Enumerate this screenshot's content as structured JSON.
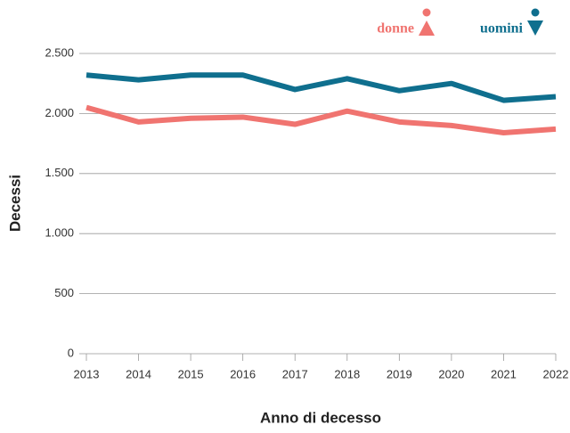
{
  "chart_data": {
    "type": "line",
    "x_label": "Anno di decesso",
    "y_label": "Decessi",
    "categories": [
      "2013",
      "2014",
      "2015",
      "2016",
      "2017",
      "2018",
      "2019",
      "2020",
      "2021",
      "2022"
    ],
    "series": [
      {
        "name": "donne",
        "color": "#f07470",
        "values": [
          2050,
          1930,
          1960,
          1970,
          1910,
          2020,
          1930,
          1900,
          1840,
          1870
        ]
      },
      {
        "name": "uomini",
        "color": "#0f6f8e",
        "values": [
          2320,
          2280,
          2320,
          2320,
          2200,
          2290,
          2190,
          2250,
          2110,
          2140
        ]
      }
    ],
    "ylim": [
      0,
      2500
    ],
    "yticks": [
      0,
      500,
      {
        "value": 1000,
        "label": "1.000"
      },
      {
        "value": 1500,
        "label": "1.500"
      },
      {
        "value": 2000,
        "label": "2.000"
      },
      {
        "value": 2500,
        "label": "2.500"
      }
    ],
    "grid": true
  }
}
